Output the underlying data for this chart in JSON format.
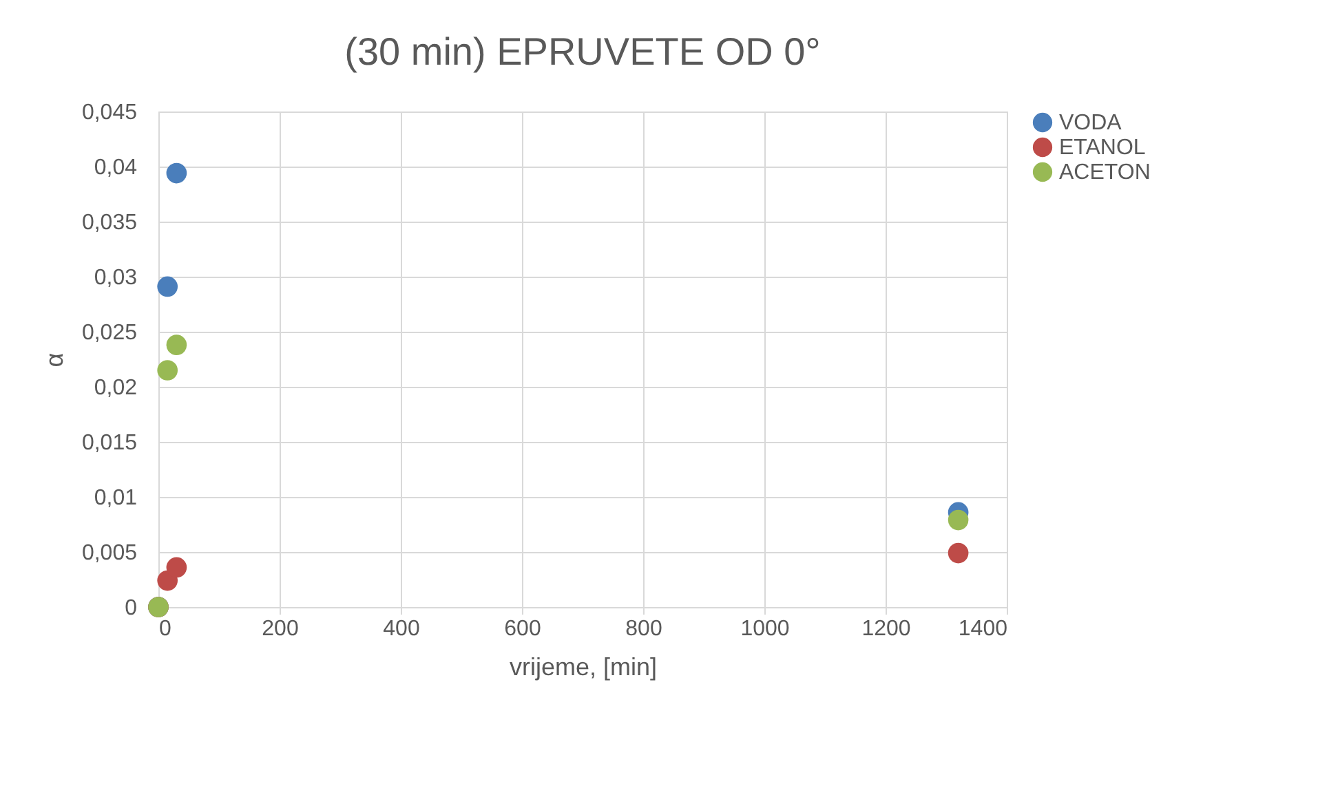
{
  "chart_data": {
    "type": "scatter",
    "title": "(30 min) EPRUVETE OD 0°",
    "xlabel": "vrijeme, [min]",
    "ylabel": "α",
    "series": [
      {
        "name": "VODA",
        "color": "#4a7ebb",
        "x": [
          0,
          15,
          30,
          1320
        ],
        "values": [
          0,
          0.0291,
          0.0394,
          0.0086
        ]
      },
      {
        "name": "ETANOL",
        "color": "#be4b48",
        "x": [
          0,
          15,
          30,
          1320
        ],
        "values": [
          0,
          0.0024,
          0.0036,
          0.0049
        ]
      },
      {
        "name": "ACETON",
        "color": "#98b954",
        "x": [
          0,
          15,
          30,
          1320
        ],
        "values": [
          0,
          0.0215,
          0.0238,
          0.0079
        ]
      }
    ],
    "xlim": [
      0,
      1400
    ],
    "xticks": [
      0,
      200,
      400,
      600,
      800,
      1000,
      1200,
      1400
    ],
    "ylim": [
      0,
      0.045
    ],
    "yticks": [
      0,
      {
        "value": 0.005,
        "label": "0,005"
      },
      {
        "value": 0.01,
        "label": "0,01"
      },
      {
        "value": 0.015,
        "label": "0,015"
      },
      {
        "value": 0.02,
        "label": "0,02"
      },
      {
        "value": 0.025,
        "label": "0,025"
      },
      {
        "value": 0.03,
        "label": "0,03"
      },
      {
        "value": 0.035,
        "label": "0,035"
      },
      {
        "value": 0.04,
        "label": "0,04"
      },
      {
        "value": 0.045,
        "label": "0,045"
      }
    ],
    "grid": true,
    "legend": "right",
    "marker": "circle"
  }
}
